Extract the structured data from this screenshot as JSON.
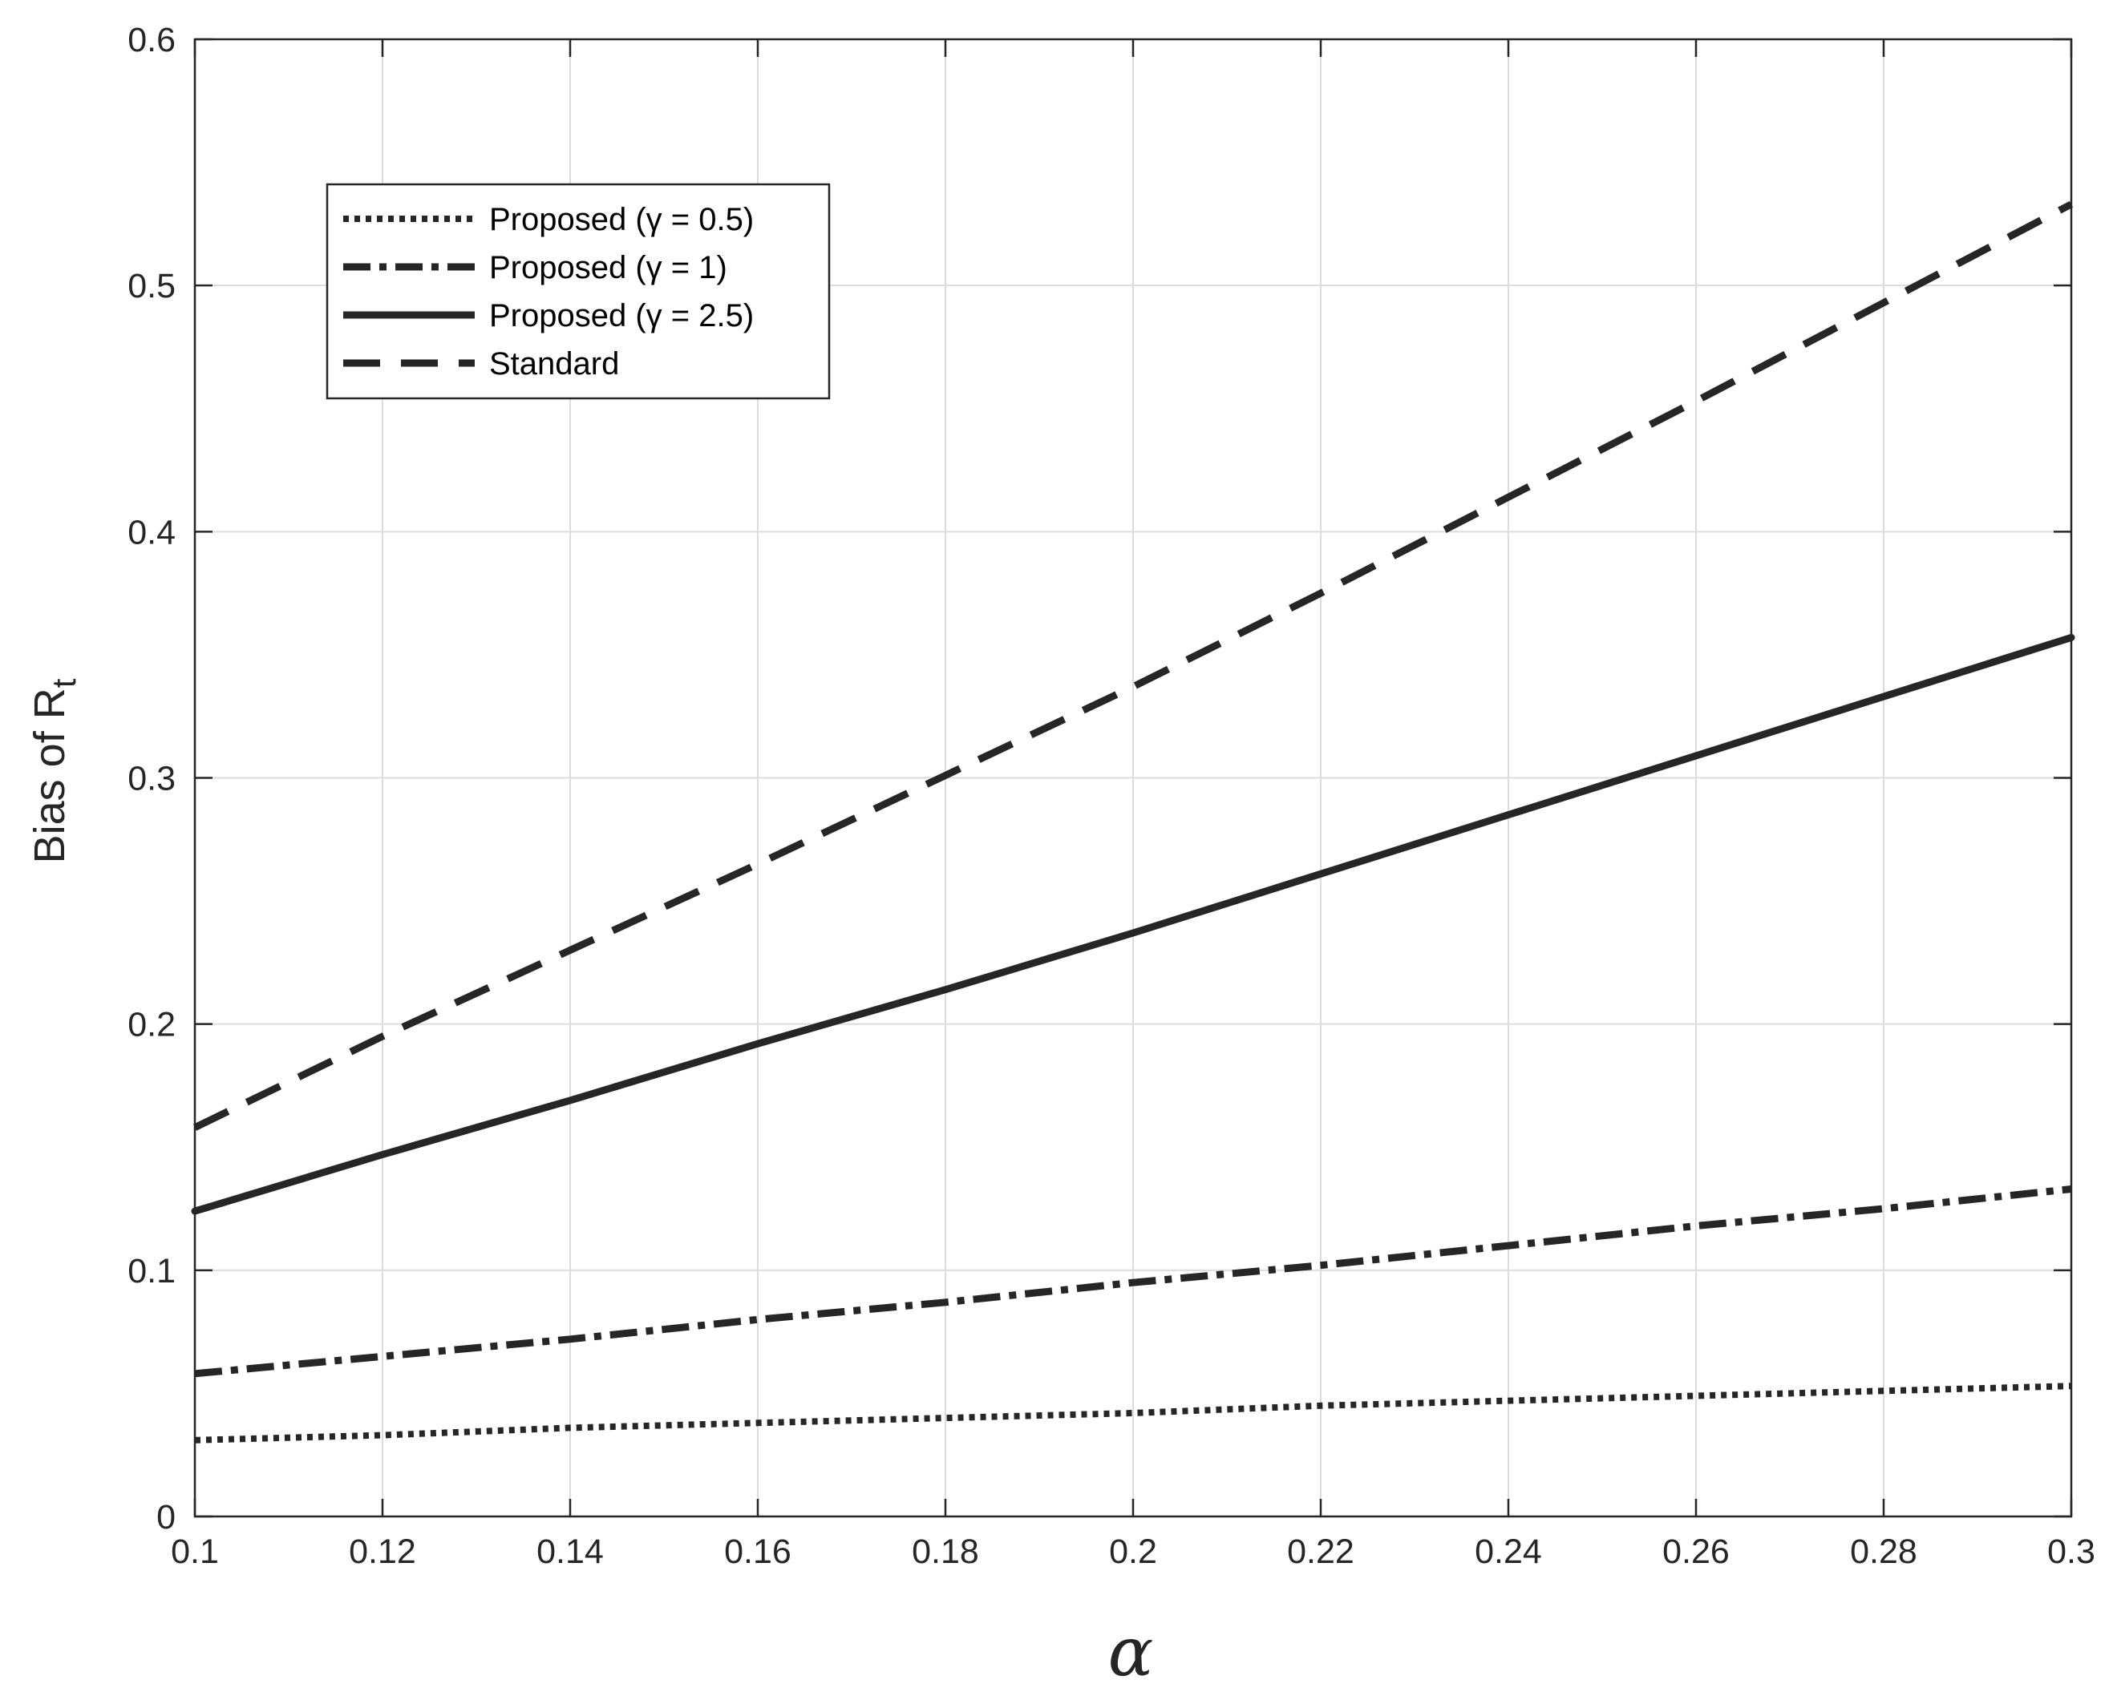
{
  "chart_data": {
    "type": "line",
    "xlabel": "α",
    "ylabel": "Bias of R",
    "ylabel_subscript": "t",
    "xlim": [
      0.1,
      0.3
    ],
    "ylim": [
      0,
      0.6
    ],
    "x_ticks": [
      "0.1",
      "0.12",
      "0.14",
      "0.16",
      "0.18",
      "0.2",
      "0.22",
      "0.24",
      "0.26",
      "0.28",
      "0.3"
    ],
    "y_ticks": [
      "0",
      "0.1",
      "0.2",
      "0.3",
      "0.4",
      "0.5",
      "0.6"
    ],
    "grid": true,
    "legend_position": "top-left",
    "x": [
      0.1,
      0.12,
      0.14,
      0.16,
      0.18,
      0.2,
      0.22,
      0.24,
      0.26,
      0.28,
      0.3
    ],
    "series": [
      {
        "name": "Proposed (γ = 0.5)",
        "style": "dotted",
        "color": "#262626",
        "values": [
          0.031,
          0.033,
          0.036,
          0.038,
          0.04,
          0.042,
          0.045,
          0.047,
          0.049,
          0.051,
          0.053
        ]
      },
      {
        "name": "Proposed (γ = 1)",
        "style": "dashdot",
        "color": "#262626",
        "values": [
          0.058,
          0.065,
          0.072,
          0.08,
          0.087,
          0.095,
          0.102,
          0.11,
          0.118,
          0.125,
          0.133
        ]
      },
      {
        "name": "Proposed (γ = 2.5)",
        "style": "solid",
        "color": "#262626",
        "values": [
          0.124,
          0.147,
          0.169,
          0.192,
          0.214,
          0.237,
          0.261,
          0.285,
          0.309,
          0.333,
          0.357
        ]
      },
      {
        "name": "Standard",
        "style": "dashed",
        "color": "#262626",
        "values": [
          0.158,
          0.195,
          0.23,
          0.265,
          0.301,
          0.337,
          0.375,
          0.414,
          0.453,
          0.493,
          0.533
        ]
      }
    ]
  }
}
